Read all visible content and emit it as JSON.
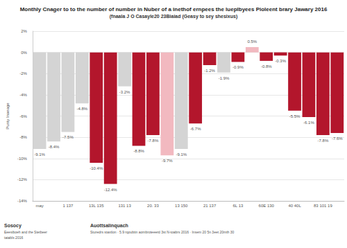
{
  "chart_data": {
    "type": "bar",
    "title": "Monthly Cnager to to the number of number in Nuber of a inethof ernpees the lueplbyees Pioleent brary Jawary 2016",
    "subtitle": "(fnaala J O Casayle20 23Biaiad (Geasy to sey shesixus)",
    "y_label": "Puniy Inaeage",
    "categories": [
      "may",
      null,
      "1 137",
      null,
      "13L 135",
      null,
      "131 13",
      null,
      "20. 33",
      null,
      "13 150",
      null,
      "21 137",
      null,
      "6L 13",
      null,
      "60E 130",
      null,
      "40 40L",
      null,
      "83 101 19",
      null
    ],
    "values": [
      -9.1,
      -8.4,
      -7.5,
      -4.8,
      -10.4,
      -12.4,
      -3.2,
      -8.8,
      -7.8,
      -9.7,
      -9.1,
      -6.7,
      -1.2,
      -1.9,
      -0.9,
      0.5,
      -0.8,
      -0.3,
      -5.5,
      -6.1,
      -7.8,
      -7.6
    ],
    "value_labels": [
      "-9.1%",
      "-8.4%",
      "-7.5%",
      "-4.8%",
      "-10.4%",
      "-12.4%",
      "-3.2%",
      "-8.8%",
      "-7.8%",
      "-9.7%",
      "-9.1%",
      "-6.7%",
      "-1.2%",
      "-1.9%",
      "-0.9%",
      "0.5%",
      "-0.8%",
      "-0.3%",
      "-5.5%",
      "-6.1%",
      "-7.8%",
      "-7.6%"
    ],
    "colors": [
      "#d4d4d4",
      "#d4d4d4",
      "#d4d4d4",
      "#d4d4d4",
      "#b3162c",
      "#b3162c",
      "#d4d4d4",
      "#b3162c",
      "#b3162c",
      "#f2b9c0",
      "#d4d4d4",
      "#b3162c",
      "#b3162c",
      "#d4d4d4",
      "#b3162c",
      "#f2b9c0",
      "#b3162c",
      "#b3162c",
      "#b3162c",
      "#b3162c",
      "#b3162c",
      "#b3162c"
    ],
    "ylim": [
      -14,
      2
    ],
    "yticks": [
      {
        "value": -14,
        "label": "-14%"
      },
      {
        "value": -12,
        "label": "-12%"
      },
      {
        "value": -10,
        "label": "-10%"
      },
      {
        "value": -8,
        "label": "-8%"
      },
      {
        "value": -6,
        "label": "-6%"
      },
      {
        "value": -4,
        "label": "-4%"
      },
      {
        "value": -2,
        "label": "-2%"
      },
      {
        "value": 0,
        "label": "0%"
      },
      {
        "value": 2,
        "label": "2%"
      }
    ],
    "grid": true,
    "data_labels": true,
    "source_title": "Sosocy",
    "source_lines": [
      "Eeesiboeh and the Stetbeer",
      "tatabls 2016"
    ],
    "notes_title": "Auottsalinquach",
    "notes": "Sturedrs staxtlon · 5.9 rqoubtin aombroteeerd 3st N-toabrs 2016 · Insem 20 5n 3eet 20mth 30"
  }
}
